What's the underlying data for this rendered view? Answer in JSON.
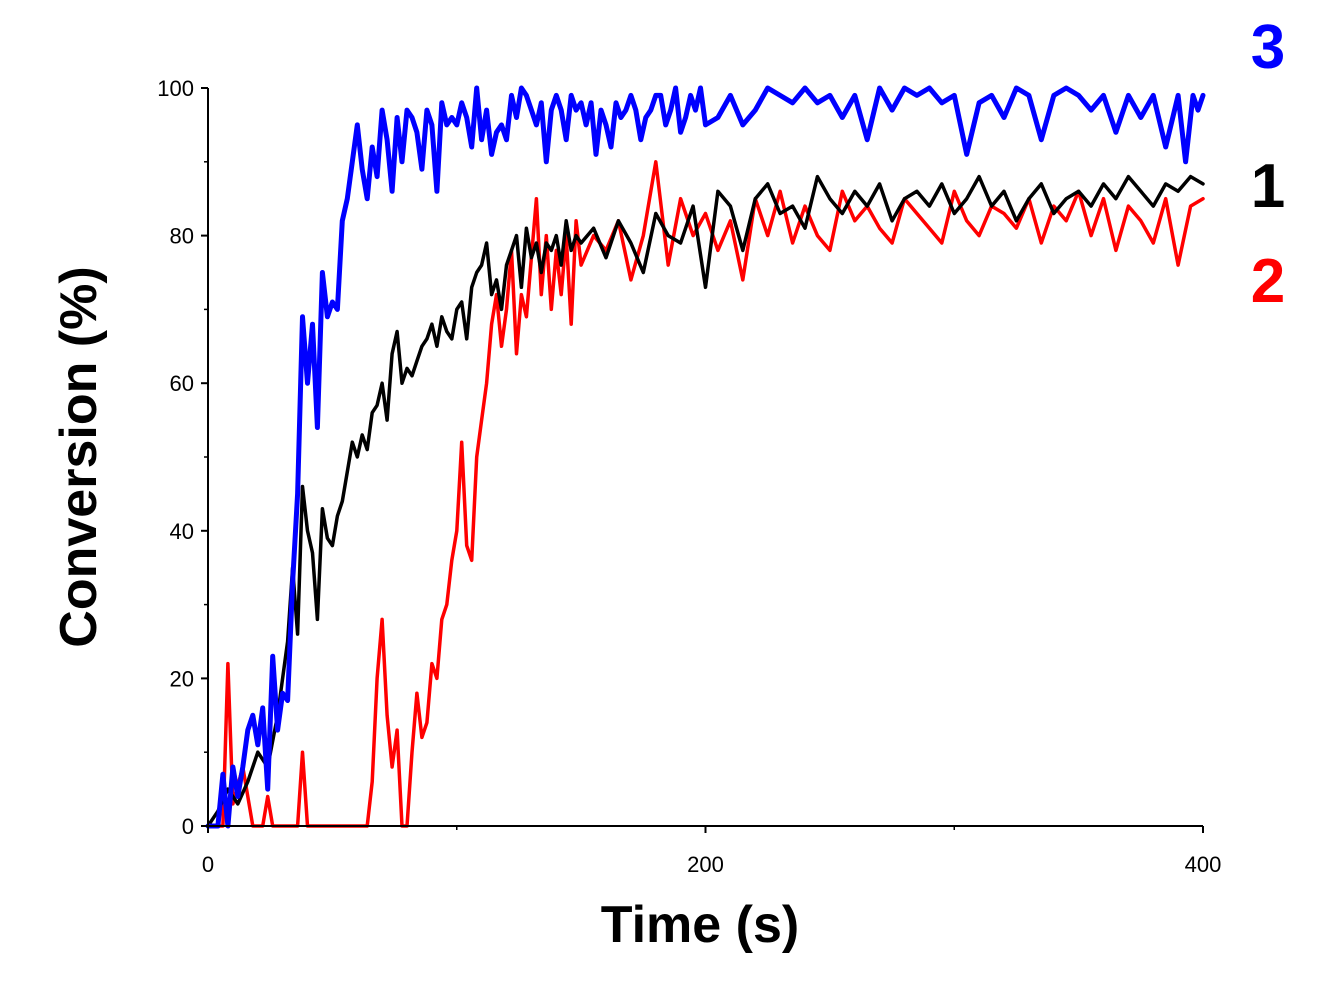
{
  "chart_data": {
    "type": "line",
    "xlabel": "Time (s)",
    "ylabel": "Conversion (%)",
    "xlim": [
      0,
      400
    ],
    "ylim": [
      0,
      100
    ],
    "x_ticks": [
      0,
      200,
      400
    ],
    "y_ticks": [
      0,
      20,
      40,
      60,
      80,
      100
    ],
    "grid": false,
    "legend": "series labels at right end of lines",
    "series": [
      {
        "name": "3",
        "color": "#0000ff",
        "x": [
          0,
          4,
          6,
          8,
          10,
          12,
          14,
          16,
          18,
          20,
          22,
          24,
          26,
          28,
          30,
          32,
          34,
          36,
          38,
          40,
          42,
          44,
          46,
          48,
          50,
          52,
          54,
          56,
          58,
          60,
          62,
          64,
          66,
          68,
          70,
          72,
          74,
          76,
          78,
          80,
          82,
          84,
          86,
          88,
          90,
          92,
          94,
          96,
          98,
          100,
          102,
          104,
          106,
          108,
          110,
          112,
          114,
          116,
          118,
          120,
          122,
          124,
          126,
          128,
          130,
          132,
          134,
          136,
          138,
          140,
          142,
          144,
          146,
          148,
          150,
          152,
          154,
          156,
          158,
          160,
          162,
          164,
          166,
          168,
          170,
          172,
          174,
          176,
          178,
          180,
          182,
          184,
          186,
          188,
          190,
          192,
          194,
          196,
          198,
          200,
          205,
          210,
          215,
          220,
          225,
          230,
          235,
          240,
          245,
          250,
          255,
          260,
          265,
          270,
          275,
          280,
          285,
          290,
          295,
          300,
          305,
          310,
          315,
          320,
          325,
          330,
          335,
          340,
          345,
          350,
          355,
          360,
          365,
          370,
          375,
          380,
          385,
          390,
          393,
          396,
          398,
          400
        ],
        "y": [
          0,
          0,
          7,
          0,
          8,
          4,
          8,
          13,
          15,
          11,
          16,
          5,
          23,
          13,
          18,
          17,
          33,
          45,
          69,
          60,
          68,
          54,
          75,
          69,
          71,
          70,
          82,
          85,
          90,
          95,
          89,
          85,
          92,
          88,
          97,
          93,
          86,
          96,
          90,
          97,
          96,
          94,
          89,
          97,
          95,
          86,
          98,
          95,
          96,
          95,
          98,
          96,
          92,
          100,
          93,
          97,
          91,
          94,
          95,
          93,
          99,
          96,
          100,
          99,
          97,
          95,
          98,
          90,
          97,
          99,
          97,
          93,
          99,
          97,
          98,
          95,
          98,
          91,
          97,
          95,
          92,
          98,
          96,
          97,
          99,
          97,
          93,
          96,
          97,
          99,
          99,
          95,
          97,
          100,
          94,
          96,
          99,
          97,
          100,
          95,
          96,
          99,
          95,
          97,
          100,
          99,
          98,
          100,
          98,
          99,
          96,
          99,
          93,
          100,
          97,
          100,
          99,
          100,
          98,
          99,
          91,
          98,
          99,
          96,
          100,
          99,
          93,
          99,
          100,
          99,
          97,
          99,
          94,
          99,
          96,
          99,
          92,
          99,
          90,
          99,
          97,
          99
        ]
      },
      {
        "name": "1",
        "color": "#000000",
        "x": [
          0,
          4,
          8,
          12,
          16,
          20,
          24,
          28,
          32,
          34,
          36,
          38,
          40,
          42,
          44,
          46,
          48,
          50,
          52,
          54,
          56,
          58,
          60,
          62,
          64,
          66,
          68,
          70,
          72,
          74,
          76,
          78,
          80,
          82,
          84,
          86,
          88,
          90,
          92,
          94,
          96,
          98,
          100,
          102,
          104,
          106,
          108,
          110,
          112,
          114,
          116,
          118,
          120,
          122,
          124,
          126,
          128,
          130,
          132,
          134,
          136,
          138,
          140,
          142,
          144,
          146,
          148,
          150,
          155,
          160,
          165,
          170,
          175,
          180,
          185,
          190,
          195,
          200,
          205,
          210,
          215,
          220,
          225,
          230,
          235,
          240,
          245,
          250,
          255,
          260,
          265,
          270,
          275,
          280,
          285,
          290,
          295,
          300,
          305,
          310,
          315,
          320,
          325,
          330,
          335,
          340,
          345,
          350,
          355,
          360,
          365,
          370,
          375,
          380,
          385,
          390,
          395,
          400
        ],
        "y": [
          0,
          2,
          5,
          3,
          6,
          10,
          8,
          15,
          25,
          35,
          26,
          46,
          40,
          37,
          28,
          43,
          39,
          38,
          42,
          44,
          48,
          52,
          50,
          53,
          51,
          56,
          57,
          60,
          55,
          64,
          67,
          60,
          62,
          61,
          63,
          65,
          66,
          68,
          65,
          69,
          67,
          66,
          70,
          71,
          66,
          73,
          75,
          76,
          79,
          72,
          74,
          70,
          76,
          78,
          80,
          73,
          81,
          77,
          79,
          75,
          79,
          78,
          80,
          76,
          82,
          78,
          80,
          79,
          81,
          77,
          82,
          79,
          75,
          83,
          80,
          79,
          84,
          73,
          86,
          84,
          78,
          85,
          87,
          83,
          84,
          81,
          88,
          85,
          83,
          86,
          84,
          87,
          82,
          85,
          86,
          84,
          87,
          83,
          85,
          88,
          84,
          86,
          82,
          85,
          87,
          83,
          85,
          86,
          84,
          87,
          85,
          88,
          86,
          84,
          87,
          86,
          88,
          87
        ]
      },
      {
        "name": "2",
        "color": "#ff0000",
        "x": [
          0,
          6,
          8,
          10,
          14,
          18,
          22,
          24,
          26,
          28,
          30,
          32,
          34,
          36,
          38,
          40,
          42,
          44,
          46,
          48,
          50,
          52,
          54,
          56,
          58,
          60,
          62,
          64,
          66,
          68,
          70,
          72,
          74,
          76,
          78,
          80,
          82,
          84,
          86,
          88,
          90,
          92,
          94,
          96,
          98,
          100,
          102,
          104,
          106,
          108,
          110,
          112,
          114,
          116,
          118,
          120,
          122,
          124,
          126,
          128,
          130,
          132,
          134,
          136,
          138,
          140,
          142,
          144,
          146,
          148,
          150,
          155,
          160,
          165,
          170,
          175,
          180,
          185,
          190,
          195,
          200,
          205,
          210,
          215,
          220,
          225,
          230,
          235,
          240,
          245,
          250,
          255,
          260,
          265,
          270,
          275,
          280,
          285,
          290,
          295,
          300,
          305,
          310,
          315,
          320,
          325,
          330,
          335,
          340,
          345,
          350,
          355,
          360,
          365,
          370,
          375,
          380,
          385,
          390,
          395,
          400
        ],
        "y": [
          0,
          0,
          22,
          3,
          8,
          0,
          0,
          4,
          0,
          0,
          0,
          0,
          0,
          0,
          10,
          0,
          0,
          0,
          0,
          0,
          0,
          0,
          0,
          0,
          0,
          0,
          0,
          0,
          6,
          20,
          28,
          15,
          8,
          13,
          0,
          0,
          10,
          18,
          12,
          14,
          22,
          20,
          28,
          30,
          36,
          40,
          52,
          38,
          36,
          50,
          55,
          60,
          68,
          72,
          65,
          70,
          78,
          64,
          72,
          69,
          77,
          85,
          72,
          80,
          70,
          78,
          72,
          80,
          68,
          82,
          76,
          80,
          78,
          82,
          74,
          80,
          90,
          76,
          85,
          80,
          83,
          78,
          82,
          74,
          85,
          80,
          86,
          79,
          84,
          80,
          78,
          86,
          82,
          84,
          81,
          79,
          85,
          83,
          81,
          79,
          86,
          82,
          80,
          84,
          83,
          81,
          85,
          79,
          84,
          82,
          86,
          80,
          85,
          78,
          84,
          82,
          79,
          85,
          76,
          84,
          85
        ]
      }
    ]
  }
}
